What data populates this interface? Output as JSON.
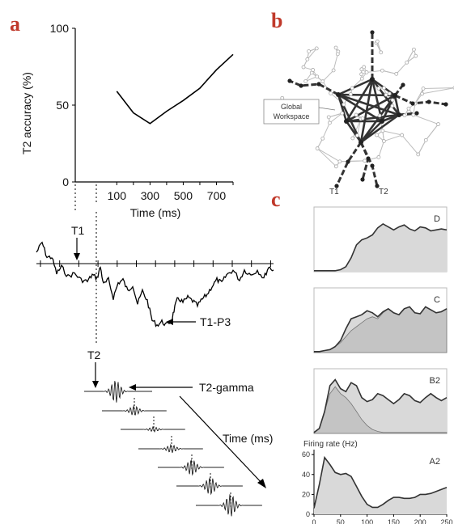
{
  "panels": {
    "a": "a",
    "b": "b",
    "c": "c"
  },
  "chart_data": [
    {
      "id": "t2-accuracy",
      "type": "line",
      "ylabel": "T2 accuracy (%)",
      "xlabel": "Time (ms)",
      "yticks": [
        "0",
        "50",
        "100"
      ],
      "xticks": [
        "100",
        "300",
        "500",
        "700"
      ],
      "ylim": [
        0,
        100
      ],
      "xlim": [
        -150,
        800
      ],
      "x": [
        100,
        200,
        300,
        400,
        500,
        600,
        700,
        800
      ],
      "y": [
        59,
        45,
        38,
        46,
        53,
        61,
        73,
        83
      ]
    },
    {
      "id": "eeg-erp",
      "type": "line",
      "annotations": {
        "t1": "T1",
        "t1_p3": "T1-P3",
        "t2": "T2",
        "t2_gamma": "T2-gamma",
        "time_arrow": "Time (ms)"
      }
    },
    {
      "id": "global-workspace-network",
      "type": "diagram",
      "labels": {
        "workspace": "Global\nWorkspace",
        "t1": "T1",
        "t2": "T2"
      }
    },
    {
      "id": "firing-rates",
      "type": "area",
      "ylabel": "Firing rate (Hz)",
      "xticks": [
        "0",
        "50",
        "100",
        "150",
        "200",
        "250"
      ],
      "yticks": [
        "0",
        "20",
        "40",
        "60"
      ],
      "xlim": [
        0,
        250
      ],
      "ylim": [
        0,
        65
      ],
      "x": [
        0,
        10,
        20,
        30,
        40,
        50,
        60,
        70,
        80,
        90,
        100,
        110,
        120,
        130,
        140,
        150,
        160,
        170,
        180,
        190,
        200,
        210,
        220,
        230,
        240,
        250
      ],
      "series": [
        {
          "name": "D",
          "total": [
            1,
            1,
            1,
            1,
            1,
            2,
            5,
            14,
            27,
            32,
            34,
            37,
            44,
            48,
            45,
            42,
            45,
            47,
            43,
            41,
            45,
            44,
            41,
            42,
            43,
            42
          ],
          "t2": [
            1,
            1,
            1,
            1,
            1,
            2,
            5,
            14,
            27,
            32,
            34,
            37,
            44,
            48,
            45,
            42,
            45,
            47,
            43,
            41,
            45,
            44,
            41,
            42,
            43,
            42
          ]
        },
        {
          "name": "C",
          "total": [
            1,
            1,
            2,
            3,
            6,
            12,
            24,
            34,
            36,
            38,
            42,
            40,
            36,
            41,
            44,
            40,
            38,
            44,
            46,
            40,
            39,
            46,
            43,
            40,
            41,
            44
          ],
          "t2": [
            1,
            1,
            2,
            3,
            6,
            10,
            16,
            22,
            26,
            30,
            34,
            36,
            34,
            40,
            44,
            40,
            38,
            44,
            46,
            40,
            39,
            46,
            43,
            40,
            41,
            44
          ]
        },
        {
          "name": "B2",
          "total": [
            1,
            5,
            22,
            48,
            54,
            45,
            42,
            51,
            48,
            36,
            32,
            34,
            40,
            38,
            34,
            30,
            34,
            40,
            38,
            33,
            31,
            36,
            40,
            36,
            33,
            36
          ],
          "t2": [
            1,
            5,
            22,
            40,
            47,
            40,
            36,
            30,
            22,
            14,
            8,
            4,
            2,
            1,
            1,
            1,
            1,
            1,
            1,
            1,
            1,
            1,
            1,
            1,
            1,
            1
          ]
        },
        {
          "name": "A2",
          "total": [
            6,
            30,
            57,
            50,
            42,
            40,
            41,
            38,
            28,
            18,
            10,
            7,
            7,
            10,
            14,
            17,
            17,
            16,
            16,
            17,
            20,
            20,
            21,
            23,
            25,
            27
          ],
          "t2": [
            6,
            30,
            57,
            50,
            42,
            40,
            41,
            38,
            28,
            18,
            10,
            7,
            7,
            10,
            14,
            17,
            17,
            16,
            16,
            17,
            20,
            20,
            21,
            23,
            25,
            27
          ]
        }
      ]
    }
  ]
}
